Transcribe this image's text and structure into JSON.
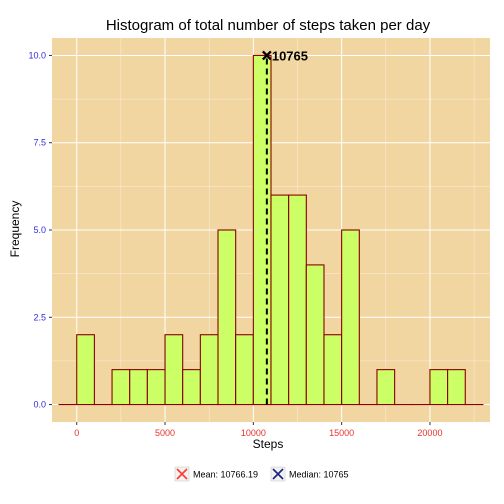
{
  "chart_data": {
    "type": "bar",
    "title": "Histogram of total number of steps taken per day",
    "xlabel": "Steps",
    "ylabel": "Frequency",
    "xlim": [
      -1400,
      23400
    ],
    "ylim": [
      -0.5,
      10.5
    ],
    "x_ticks": [
      0,
      5000,
      10000,
      15000,
      20000
    ],
    "x_tick_labels": [
      "0",
      "5000",
      "10000",
      "15000",
      "20000"
    ],
    "y_ticks": [
      0,
      2.5,
      5,
      7.5,
      10
    ],
    "y_tick_labels": [
      "0.0",
      "2.5",
      "5.0",
      "7.5",
      "10.0"
    ],
    "bin_width": 1000,
    "bin_starts": [
      -1000,
      0,
      1000,
      2000,
      3000,
      4000,
      5000,
      6000,
      7000,
      8000,
      9000,
      10000,
      11000,
      12000,
      13000,
      14000,
      15000,
      16000,
      17000,
      18000,
      19000,
      20000,
      21000,
      22000
    ],
    "values": [
      0,
      2,
      0,
      1,
      1,
      1,
      2,
      1,
      2,
      5,
      2,
      10,
      6,
      6,
      4,
      2,
      5,
      0,
      1,
      0,
      0,
      1,
      1,
      0
    ],
    "mean": 10766.19,
    "median": 10765,
    "annotation": "10765",
    "legend": [
      {
        "label": "Mean: 10766.19",
        "color": "#ff3b30"
      },
      {
        "label": "Median: 10765",
        "color": "#1a237e"
      }
    ],
    "colors": {
      "panel_bg": "#f2d6a2",
      "grid": "#ffffff",
      "bar_fill": "#ccff66",
      "bar_stroke": "#8b0000",
      "x_tick_text": "#e8322a",
      "y_tick_text": "#2f2fd6",
      "median_line": "#000000"
    }
  }
}
